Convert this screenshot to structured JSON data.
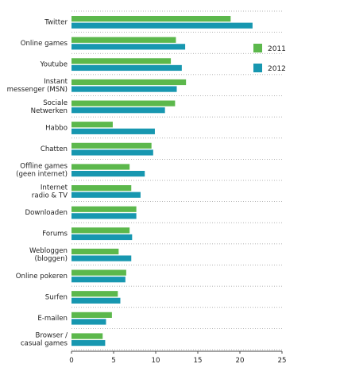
{
  "chart_data": {
    "type": "bar",
    "orientation": "horizontal",
    "categories": [
      [
        "Twitter"
      ],
      [
        "Online games"
      ],
      [
        "Youtube"
      ],
      [
        "Instant",
        "messenger (MSN)"
      ],
      [
        "Sociale",
        "Netwerken"
      ],
      [
        "Habbo"
      ],
      [
        "Chatten"
      ],
      [
        "Offline games",
        "(geen internet)"
      ],
      [
        "Internet",
        "radio & TV"
      ],
      [
        "Downloaden"
      ],
      [
        "Forums"
      ],
      [
        "Webloggen",
        "(bloggen)"
      ],
      [
        "Online pokeren"
      ],
      [
        "Surfen"
      ],
      [
        "E-mailen"
      ],
      [
        "Browser /",
        "casual games"
      ]
    ],
    "series": [
      {
        "name": "2011",
        "color": "#5cb84c",
        "values": [
          18.9,
          12.4,
          11.8,
          13.6,
          12.3,
          4.9,
          9.5,
          6.9,
          7.1,
          7.7,
          6.9,
          5.6,
          6.5,
          5.5,
          4.8,
          3.7
        ]
      },
      {
        "name": "2012",
        "color": "#1797b0",
        "values": [
          21.5,
          13.5,
          13.1,
          12.5,
          11.1,
          9.9,
          9.7,
          8.7,
          8.2,
          7.7,
          7.2,
          7.1,
          6.4,
          5.8,
          4.1,
          4.0
        ]
      }
    ],
    "xlim": [
      0,
      25
    ],
    "xticks": [
      0,
      5,
      10,
      15,
      20,
      25
    ],
    "grid": "horizontal dotted separators",
    "legend": "right"
  }
}
